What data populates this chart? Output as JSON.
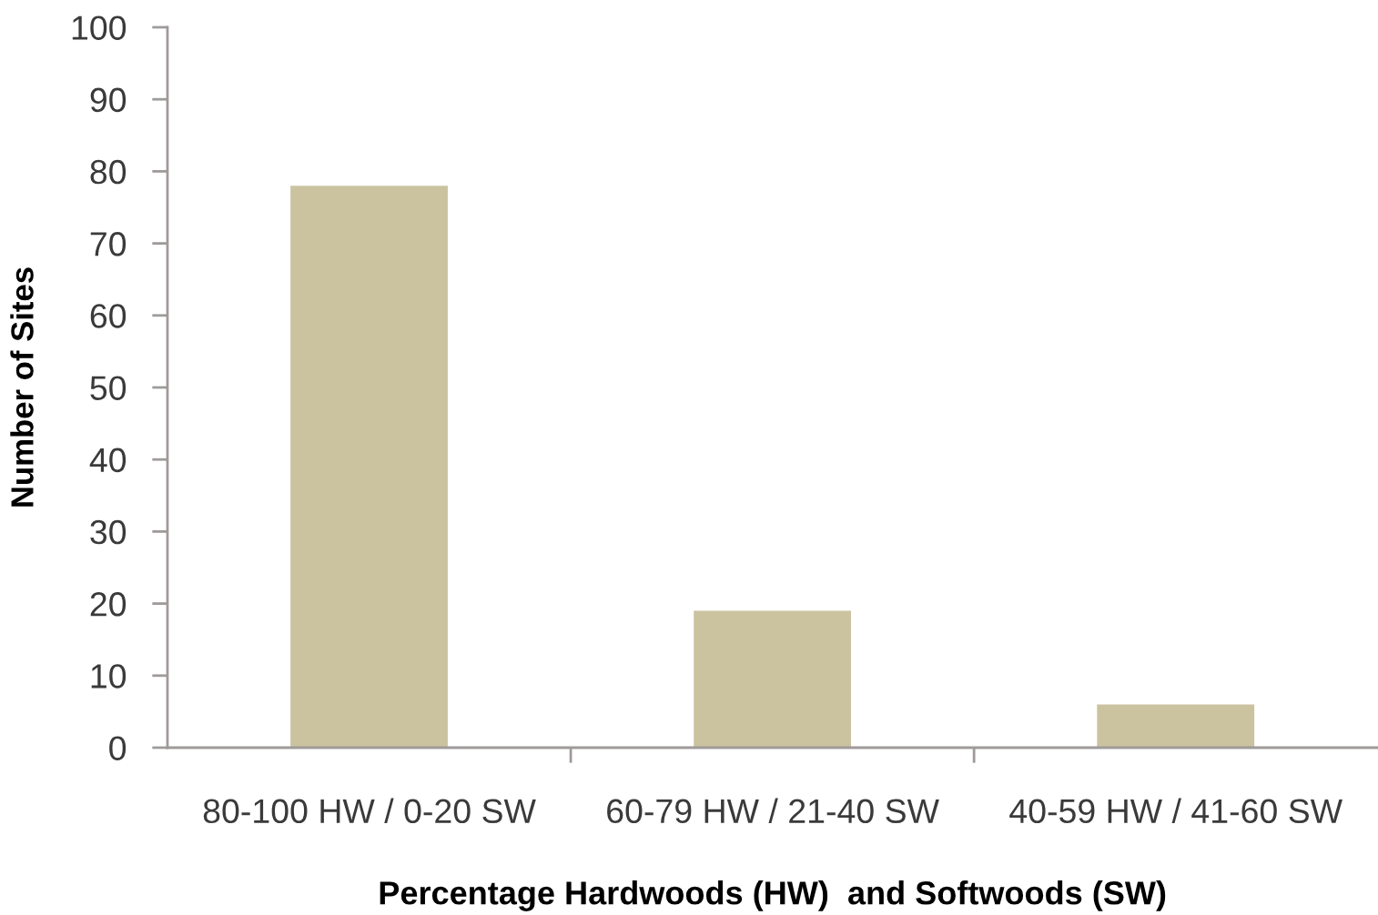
{
  "chart_data": {
    "type": "bar",
    "xlabel": "Percentage Hardwoods (HW)  and Softwoods (SW)",
    "ylabel": "Number of Sites",
    "categories": [
      "80-100 HW / 0-20 SW",
      "60-79 HW / 21-40 SW",
      "40-59 HW / 41-60 SW"
    ],
    "values": [
      78,
      19,
      6
    ],
    "color": "#cbc39f",
    "ylim": [
      0,
      100
    ],
    "yticks": [
      0,
      10,
      20,
      30,
      40,
      50,
      60,
      70,
      80,
      90,
      100
    ],
    "grid": false,
    "legend": false
  }
}
